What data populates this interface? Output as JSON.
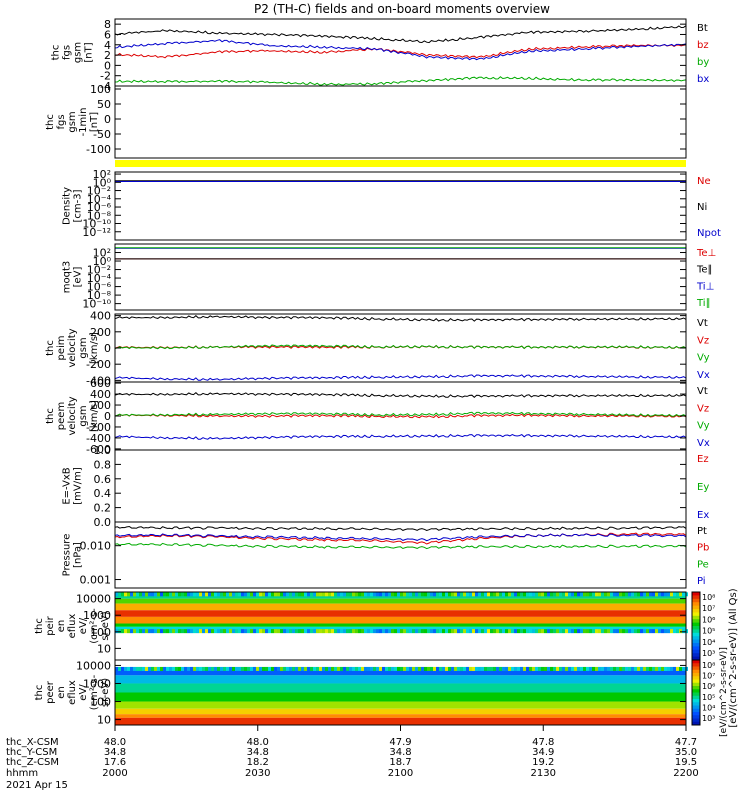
{
  "title": "P2 (TH-C) fields and on-board moments overview",
  "chart_data": [
    {
      "panel": "fgs-gsm",
      "type": "line",
      "ylabel": [
        "thc",
        "fgs",
        "gsm",
        "[nT]"
      ],
      "ylim": [
        -4,
        9
      ],
      "ticks": [
        "8",
        "6",
        "4",
        "2",
        "0",
        "-2",
        "-4"
      ],
      "tick_values": [
        8,
        6,
        4,
        2,
        0,
        -2,
        -4
      ],
      "series": [
        {
          "name": "Bt",
          "color": "#000000",
          "values": [
            6.0,
            6.8,
            6.3,
            6.0,
            5.6,
            5.2,
            4.6,
            5.4,
            6.4,
            6.6,
            7.0,
            7.6
          ]
        },
        {
          "name": "bz",
          "color": "#dd0000",
          "values": [
            2.2,
            1.6,
            2.6,
            2.8,
            2.6,
            3.2,
            2.0,
            1.6,
            3.2,
            3.6,
            3.8,
            3.8
          ]
        },
        {
          "name": "by",
          "color": "#00aa00",
          "values": [
            -3.0,
            -3.2,
            -3.1,
            -3.3,
            -3.6,
            -3.6,
            -3.0,
            -2.4,
            -2.5,
            -2.8,
            -2.9,
            -3.0
          ]
        },
        {
          "name": "bx",
          "color": "#0000cc",
          "values": [
            3.6,
            4.2,
            4.8,
            3.8,
            3.6,
            3.2,
            1.6,
            1.2,
            2.8,
            3.2,
            3.6,
            4.0
          ]
        }
      ]
    },
    {
      "panel": "fgs-gsm-blk",
      "type": "line",
      "ylabel": [
        "thc",
        "fgs",
        "gsm",
        "-1min",
        "[nT]"
      ],
      "ylim": [
        -130,
        110
      ],
      "ticks": [
        "100",
        "50",
        "0",
        "-50",
        "-100"
      ],
      "tick_values": [
        100,
        50,
        0,
        -50,
        -100
      ],
      "series": []
    },
    {
      "panel": "moments-density",
      "type": "line",
      "ylabel": [
        "Density",
        "[cm-3]"
      ],
      "ticks": [
        "10²",
        "10⁰",
        "10⁻²",
        "10⁻⁴",
        "10⁻⁶",
        "10⁻⁸",
        "10⁻¹⁰",
        "10⁻¹²"
      ],
      "tick_values": [
        2,
        0,
        -2,
        -4,
        -6,
        -8,
        -10,
        -12
      ],
      "ylim": [
        -14,
        2.5
      ],
      "series": [
        {
          "name": "Ne",
          "color": "#dd0000",
          "values": [
            0.3,
            0.3
          ]
        },
        {
          "name": "Ni",
          "color": "#000000",
          "values": [
            0.4,
            0.4
          ]
        },
        {
          "name": "Npot",
          "color": "#0000cc",
          "values": [
            0.2,
            0.2
          ]
        }
      ]
    },
    {
      "panel": "moments-temperature",
      "type": "line",
      "ylabel": [
        "moqt3",
        "[eV]"
      ],
      "ticks": [
        "10²",
        "10⁰",
        "10⁻²",
        "10⁻⁴",
        "10⁻⁶",
        "10⁻⁸",
        "10⁻¹⁰"
      ],
      "tick_values": [
        2,
        0,
        -2,
        -4,
        -6,
        -8,
        -10
      ],
      "ylim": [
        -11.5,
        4
      ],
      "series": [
        {
          "name": "Te⊥",
          "color": "#dd0000",
          "values": [
            0.5,
            0.5
          ]
        },
        {
          "name": "Te∥",
          "color": "#000000",
          "values": [
            0.5,
            0.5
          ]
        },
        {
          "name": "Ti⊥",
          "color": "#0000cc",
          "values": [
            3.0,
            3.0
          ]
        },
        {
          "name": "Ti∥",
          "color": "#00aa00",
          "values": [
            3.1,
            3.1
          ]
        }
      ]
    },
    {
      "panel": "peim-velocity",
      "type": "line",
      "ylabel": [
        "thc",
        "peim",
        "velocity",
        "gsm",
        "[km/s]"
      ],
      "ylim": [
        -420,
        420
      ],
      "ticks": [
        "400",
        "200",
        "0",
        "-200",
        "-400"
      ],
      "tick_values": [
        400,
        200,
        0,
        -200,
        -400
      ],
      "series": [
        {
          "name": "Vt",
          "color": "#000000",
          "values": [
            370,
            380,
            390,
            375,
            370,
            360,
            350,
            345,
            350,
            355,
            360,
            365
          ]
        },
        {
          "name": "Vz",
          "color": "#dd0000",
          "values": [
            5,
            10,
            15,
            10,
            5,
            12,
            18,
            10,
            8,
            10,
            12,
            10
          ]
        },
        {
          "name": "Vy",
          "color": "#00aa00",
          "values": [
            0,
            5,
            15,
            25,
            20,
            15,
            20,
            10,
            8,
            12,
            15,
            10
          ]
        },
        {
          "name": "Vx",
          "color": "#0000cc",
          "values": [
            -370,
            -380,
            -385,
            -375,
            -372,
            -360,
            -352,
            -345,
            -348,
            -352,
            -355,
            -360
          ]
        }
      ]
    },
    {
      "panel": "peem-velocity",
      "type": "line",
      "ylabel": [
        "thc",
        "peem",
        "velocity",
        "gsm",
        "[km/s]"
      ],
      "ylim": [
        -620,
        620
      ],
      "ticks": [
        "600",
        "400",
        "200",
        "0",
        "-200",
        "-400",
        "-600"
      ],
      "tick_values": [
        600,
        400,
        200,
        0,
        -200,
        -400,
        -600
      ],
      "series": [
        {
          "name": "Vt",
          "color": "#000000",
          "values": [
            390,
            400,
            410,
            395,
            385,
            375,
            365,
            360,
            365,
            370,
            375,
            380
          ]
        },
        {
          "name": "Vz",
          "color": "#dd0000",
          "values": [
            10,
            15,
            5,
            -5,
            0,
            -5,
            -10,
            5,
            10,
            0,
            5,
            0
          ]
        },
        {
          "name": "Vy",
          "color": "#00aa00",
          "values": [
            10,
            25,
            35,
            40,
            35,
            20,
            30,
            50,
            40,
            30,
            20,
            15
          ]
        },
        {
          "name": "Vx",
          "color": "#0000cc",
          "values": [
            -380,
            -395,
            -405,
            -392,
            -380,
            -370,
            -362,
            -358,
            -362,
            -366,
            -372,
            -375
          ]
        }
      ]
    },
    {
      "panel": "efield",
      "type": "line",
      "ylabel": [
        "E=-VxB",
        "[mV/m]"
      ],
      "ylim": [
        0,
        1
      ],
      "ticks": [
        "1.0",
        "0.8",
        "0.6",
        "0.4",
        "0.2",
        "0.0"
      ],
      "tick_values": [
        1.0,
        0.8,
        0.6,
        0.4,
        0.2,
        0.0
      ],
      "series": [
        {
          "name": "Ez",
          "color": "#dd0000",
          "values": []
        },
        {
          "name": "Ey",
          "color": "#00aa00",
          "values": []
        },
        {
          "name": "Ex",
          "color": "#0000cc",
          "values": []
        }
      ]
    },
    {
      "panel": "pressure",
      "type": "line",
      "ylabel": [
        "Pressure",
        "[nPa]"
      ],
      "ticks": [
        "0.010",
        "0.001"
      ],
      "tick_values": [
        -2,
        -3
      ],
      "ylim": [
        -3.25,
        -1.3
      ],
      "series": [
        {
          "name": "Pt",
          "color": "#000000",
          "values": [
            0.035,
            0.034,
            0.033,
            0.032,
            0.032,
            0.031,
            0.03,
            0.031,
            0.032,
            0.033,
            0.033,
            0.034
          ]
        },
        {
          "name": "Pb",
          "color": "#dd0000",
          "values": [
            0.018,
            0.02,
            0.018,
            0.016,
            0.015,
            0.014,
            0.012,
            0.016,
            0.02,
            0.021,
            0.022,
            0.021
          ]
        },
        {
          "name": "Pe",
          "color": "#00aa00",
          "values": [
            0.011,
            0.011,
            0.01,
            0.0095,
            0.0092,
            0.009,
            0.0088,
            0.0092,
            0.0095,
            0.0096,
            0.0096,
            0.0095
          ]
        },
        {
          "name": "Pi",
          "color": "#0000cc",
          "values": [
            0.02,
            0.021,
            0.019,
            0.018,
            0.017,
            0.016,
            0.015,
            0.018,
            0.02,
            0.021,
            0.02,
            0.019
          ]
        }
      ]
    },
    {
      "panel": "peir-en-eflux",
      "type": "heatmap",
      "ylabel": [
        "thc",
        "peir",
        "en",
        "eflux",
        "eV/",
        "(cm²-s-",
        "sr-eV)"
      ],
      "ticks": [
        "10000",
        "1000",
        "100",
        "10"
      ],
      "tick_values": [
        4,
        3,
        2,
        1
      ],
      "ylim": [
        0.3,
        4.4
      ],
      "colorbar_ticks": [
        "10⁸",
        "10⁷",
        "10⁶",
        "10⁵",
        "10⁴",
        "10³"
      ],
      "bands": [
        {
          "lo": 4.0,
          "hi": 4.2,
          "level": 0.45
        },
        {
          "lo": 3.7,
          "hi": 4.0,
          "level": 0.6
        },
        {
          "lo": 3.3,
          "hi": 3.7,
          "level": 0.8
        },
        {
          "lo": 2.9,
          "hi": 3.3,
          "level": 0.95
        },
        {
          "lo": 2.5,
          "hi": 2.9,
          "level": 0.85
        },
        {
          "lo": 2.3,
          "hi": 2.5,
          "level": 0.55
        },
        {
          "lo": 2.1,
          "hi": 2.3,
          "level": 0.4
        }
      ]
    },
    {
      "panel": "peer-en-eflux",
      "type": "heatmap",
      "ylabel": [
        "thc",
        "peer",
        "en",
        "eflux",
        "eV/",
        "(cm²-s-",
        "sr-eV)"
      ],
      "ticks": [
        "10000",
        "1000",
        "100",
        "10"
      ],
      "tick_values": [
        4,
        3,
        2,
        1
      ],
      "ylim": [
        0.7,
        4.3
      ],
      "colorbar_ticks": [
        "10⁸",
        "10⁷",
        "10⁶",
        "10⁵",
        "10⁴",
        "10³"
      ],
      "bands": [
        {
          "lo": 3.45,
          "hi": 3.75,
          "level": 0.22
        },
        {
          "lo": 3.0,
          "hi": 3.45,
          "level": 0.35
        },
        {
          "lo": 2.5,
          "hi": 3.0,
          "level": 0.45
        },
        {
          "lo": 2.0,
          "hi": 2.5,
          "level": 0.55
        },
        {
          "lo": 1.6,
          "hi": 2.0,
          "level": 0.65
        },
        {
          "lo": 1.3,
          "hi": 1.6,
          "level": 0.75
        },
        {
          "lo": 1.1,
          "hi": 1.3,
          "level": 0.85
        },
        {
          "lo": 0.7,
          "hi": 1.1,
          "level": 0.95
        }
      ]
    }
  ],
  "colorbar_label": "[eV/(cm^2-s-sr-eV)] (All Qs)",
  "colorbar_label_2": "[eV/(cm^2-s-sr-eV)]",
  "xaxis": {
    "row_labels": [
      "thc_X-CSM",
      "thc_Y-CSM",
      "thc_Z-CSM",
      "hhmm",
      "2021 Apr 15"
    ],
    "ticks": [
      {
        "x": "48.0",
        "y": "34.8",
        "z": "17.6",
        "t": "2000"
      },
      {
        "x": "48.0",
        "y": "34.8",
        "z": "18.2",
        "t": "2030"
      },
      {
        "x": "47.9",
        "y": "34.8",
        "z": "18.7",
        "t": "2100"
      },
      {
        "x": "47.8",
        "y": "34.9",
        "z": "19.2",
        "t": "2130"
      },
      {
        "x": "47.7",
        "y": "35.0",
        "z": "19.5",
        "t": "2200"
      }
    ]
  }
}
